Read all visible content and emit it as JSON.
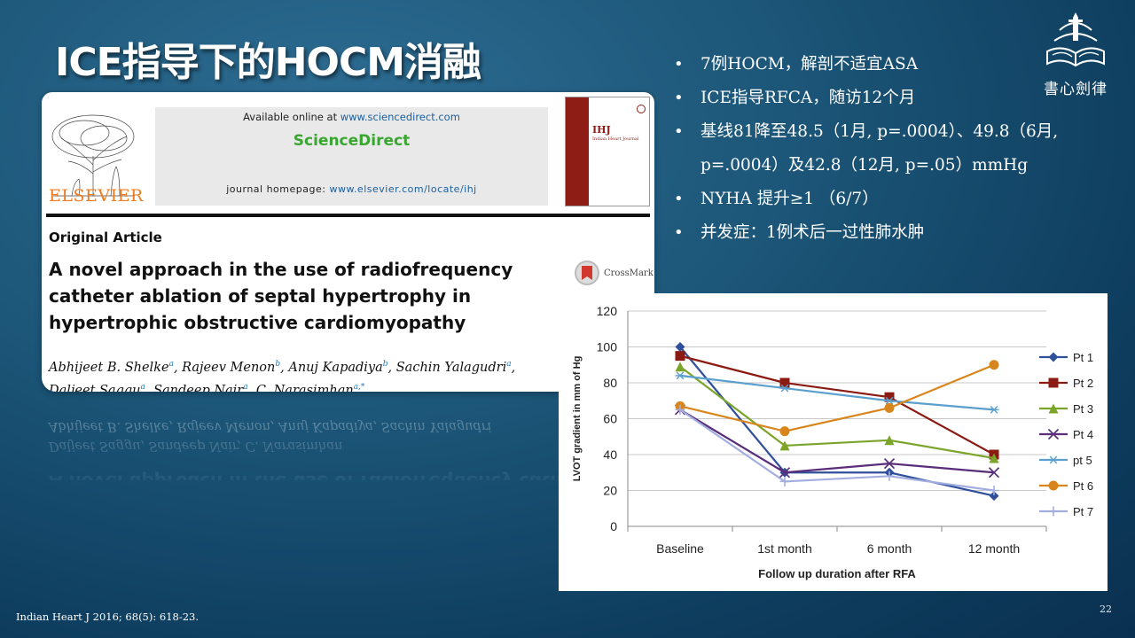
{
  "slide": {
    "title": "ICE指导下的HOCM消融",
    "page_number": "22",
    "citation": "Indian Heart J 2016; 68(5): 618-23.",
    "logo_text": "書心劍律"
  },
  "bullets": [
    "7例HOCM，解剖不适宜ASA",
    "ICE指导RFCA，随访12个月",
    "基线81降至48.5（1月, p=.0004）、49.8（6月,",
    "p=.0004）及42.8（12月, p=.05）mmHg",
    "NYHA 提升≥1 （6/7）",
    "并发症：1例术后一过性肺水肿"
  ],
  "article": {
    "publisher": "ELSEVIER",
    "available_prefix": "Available online at ",
    "available_url": "www.sciencedirect.com",
    "brand": "ScienceDirect",
    "homepage_prefix": "journal homepage: ",
    "homepage_url": "www.elsevier.com/locate/ihj",
    "journal_abbr": "IHJ",
    "journal_name": "Indian Heart Journal",
    "section": "Original Article",
    "title": "A novel approach in the use of radiofrequency catheter ablation of septal hypertrophy in hypertrophic obstructive cardiomyopathy",
    "crossmark": "CrossMark",
    "authors": [
      {
        "name": "Abhijeet B. Shelke",
        "sup": "a",
        "sep": ", "
      },
      {
        "name": "Rajeev Menon",
        "sup": "b",
        "sep": ", "
      },
      {
        "name": "Anuj Kapadiya",
        "sup": "b",
        "sep": ", "
      },
      {
        "name": "Sachin Yalagudri",
        "sup": "a",
        "sep": ","
      },
      {
        "name": "Daljeet Saggu",
        "sup": "a",
        "sep": ", "
      },
      {
        "name": "Sandeep Nair",
        "sup": "a",
        "sep": ", "
      },
      {
        "name": "C. Narasimhan",
        "sup": "a,*",
        "sep": ""
      }
    ]
  },
  "chart_data": {
    "type": "line",
    "categories": [
      "Baseline",
      "1st month",
      "6 month",
      "12 month"
    ],
    "xlabel": "Follow up  duration after  RFA",
    "ylabel": "LVOT gradient in mm of Hg",
    "ylim": [
      0,
      120
    ],
    "yticks": [
      0,
      20,
      40,
      60,
      80,
      100,
      120
    ],
    "grid": true,
    "legend_position": "right",
    "series": [
      {
        "name": "Pt 1",
        "values": [
          100,
          30,
          30,
          17
        ],
        "color": "#2f4f9a",
        "marker": "diamond"
      },
      {
        "name": "Pt 2",
        "values": [
          95,
          80,
          72,
          40
        ],
        "color": "#8b1a12",
        "marker": "square"
      },
      {
        "name": "Pt 3",
        "values": [
          89,
          45,
          48,
          38
        ],
        "color": "#7aa52a",
        "marker": "triangle"
      },
      {
        "name": "Pt 4",
        "values": [
          65,
          30,
          35,
          30
        ],
        "color": "#5a2d7a",
        "marker": "x"
      },
      {
        "name": "pt 5",
        "values": [
          84,
          77,
          70,
          65
        ],
        "color": "#5b9fcf",
        "marker": "star"
      },
      {
        "name": "Pt 6",
        "values": [
          67,
          53,
          66,
          90
        ],
        "color": "#d8861c",
        "marker": "circle"
      },
      {
        "name": "Pt 7",
        "values": [
          65,
          25,
          28,
          20
        ],
        "color": "#a3aee0",
        "marker": "plus"
      }
    ]
  }
}
